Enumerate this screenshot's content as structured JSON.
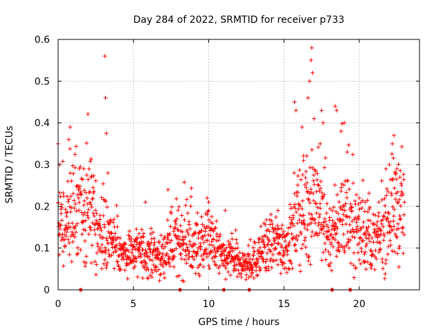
{
  "chart_data": {
    "type": "scatter",
    "title": "Day 284 of 2022, SRMTID for receiver p733",
    "xlabel": "GPS time / hours",
    "ylabel": "SRMTID / TECUs",
    "xlim": [
      0,
      24
    ],
    "ylim": [
      0,
      0.6
    ],
    "x_ticks": [
      0,
      5,
      10,
      15,
      20
    ],
    "y_ticks": [
      0,
      0.1,
      0.2,
      0.3,
      0.4,
      0.5,
      0.6
    ],
    "grid": true,
    "marker": "+",
    "color": "#ff0000",
    "gap_markers_x": [
      1.5,
      8.1,
      11.0,
      12.7,
      18.2,
      19.4
    ],
    "series": [
      {
        "name": "p733",
        "hourly_profile": {
          "hour": [
            0,
            0.5,
            1,
            1.5,
            2,
            2.5,
            3,
            3.5,
            4,
            4.5,
            5,
            5.5,
            6,
            6.5,
            7,
            7.5,
            8,
            8.5,
            9,
            9.5,
            10,
            10.5,
            11,
            11.5,
            12,
            12.5,
            13,
            13.5,
            14,
            14.5,
            15,
            15.5,
            16,
            16.5,
            17,
            17.5,
            18,
            18.5,
            19,
            19.5,
            20,
            20.5,
            21,
            21.5,
            22,
            22.5,
            23
          ],
          "median_srmtid": [
            0.16,
            0.15,
            0.2,
            0.17,
            0.19,
            0.16,
            0.13,
            0.12,
            0.09,
            0.09,
            0.09,
            0.09,
            0.08,
            0.08,
            0.08,
            0.11,
            0.12,
            0.11,
            0.1,
            0.11,
            0.12,
            0.1,
            0.07,
            0.08,
            0.06,
            0.06,
            0.07,
            0.09,
            0.11,
            0.11,
            0.11,
            0.12,
            0.18,
            0.19,
            0.23,
            0.17,
            0.13,
            0.14,
            0.19,
            0.16,
            0.14,
            0.13,
            0.11,
            0.13,
            0.18,
            0.2,
            0.18
          ]
        },
        "peaks": [
          {
            "x": 0.0,
            "y": 0.35
          },
          {
            "x": 0.1,
            "y": 0.3
          },
          {
            "x": 0.8,
            "y": 0.39
          },
          {
            "x": 0.7,
            "y": 0.36
          },
          {
            "x": 1.7,
            "y": 0.29
          },
          {
            "x": 2.2,
            "y": 0.27
          },
          {
            "x": 3.1,
            "y": 0.56
          },
          {
            "x": 3.15,
            "y": 0.46
          },
          {
            "x": 3.2,
            "y": 0.375
          },
          {
            "x": 3.3,
            "y": 0.28
          },
          {
            "x": 5.8,
            "y": 0.21
          },
          {
            "x": 7.3,
            "y": 0.24
          },
          {
            "x": 9.9,
            "y": 0.22
          },
          {
            "x": 10.0,
            "y": 0.21
          },
          {
            "x": 11.1,
            "y": 0.19
          },
          {
            "x": 14.6,
            "y": 0.19
          },
          {
            "x": 15.7,
            "y": 0.45
          },
          {
            "x": 15.8,
            "y": 0.43
          },
          {
            "x": 16.2,
            "y": 0.39
          },
          {
            "x": 16.3,
            "y": 0.31
          },
          {
            "x": 16.6,
            "y": 0.46
          },
          {
            "x": 16.7,
            "y": 0.5
          },
          {
            "x": 16.8,
            "y": 0.55
          },
          {
            "x": 16.85,
            "y": 0.58
          },
          {
            "x": 16.9,
            "y": 0.52
          },
          {
            "x": 17.0,
            "y": 0.41
          },
          {
            "x": 17.4,
            "y": 0.35
          },
          {
            "x": 17.5,
            "y": 0.43
          },
          {
            "x": 17.6,
            "y": 0.4
          },
          {
            "x": 18.4,
            "y": 0.44
          },
          {
            "x": 18.5,
            "y": 0.43
          },
          {
            "x": 18.8,
            "y": 0.38
          },
          {
            "x": 19.0,
            "y": 0.4
          },
          {
            "x": 19.2,
            "y": 0.33
          },
          {
            "x": 20.0,
            "y": 0.22
          },
          {
            "x": 20.4,
            "y": 0.21
          },
          {
            "x": 21.3,
            "y": 0.21
          },
          {
            "x": 22.0,
            "y": 0.3
          },
          {
            "x": 22.2,
            "y": 0.35
          },
          {
            "x": 22.3,
            "y": 0.37
          },
          {
            "x": 22.5,
            "y": 0.29
          },
          {
            "x": 22.7,
            "y": 0.27
          }
        ]
      }
    ]
  }
}
